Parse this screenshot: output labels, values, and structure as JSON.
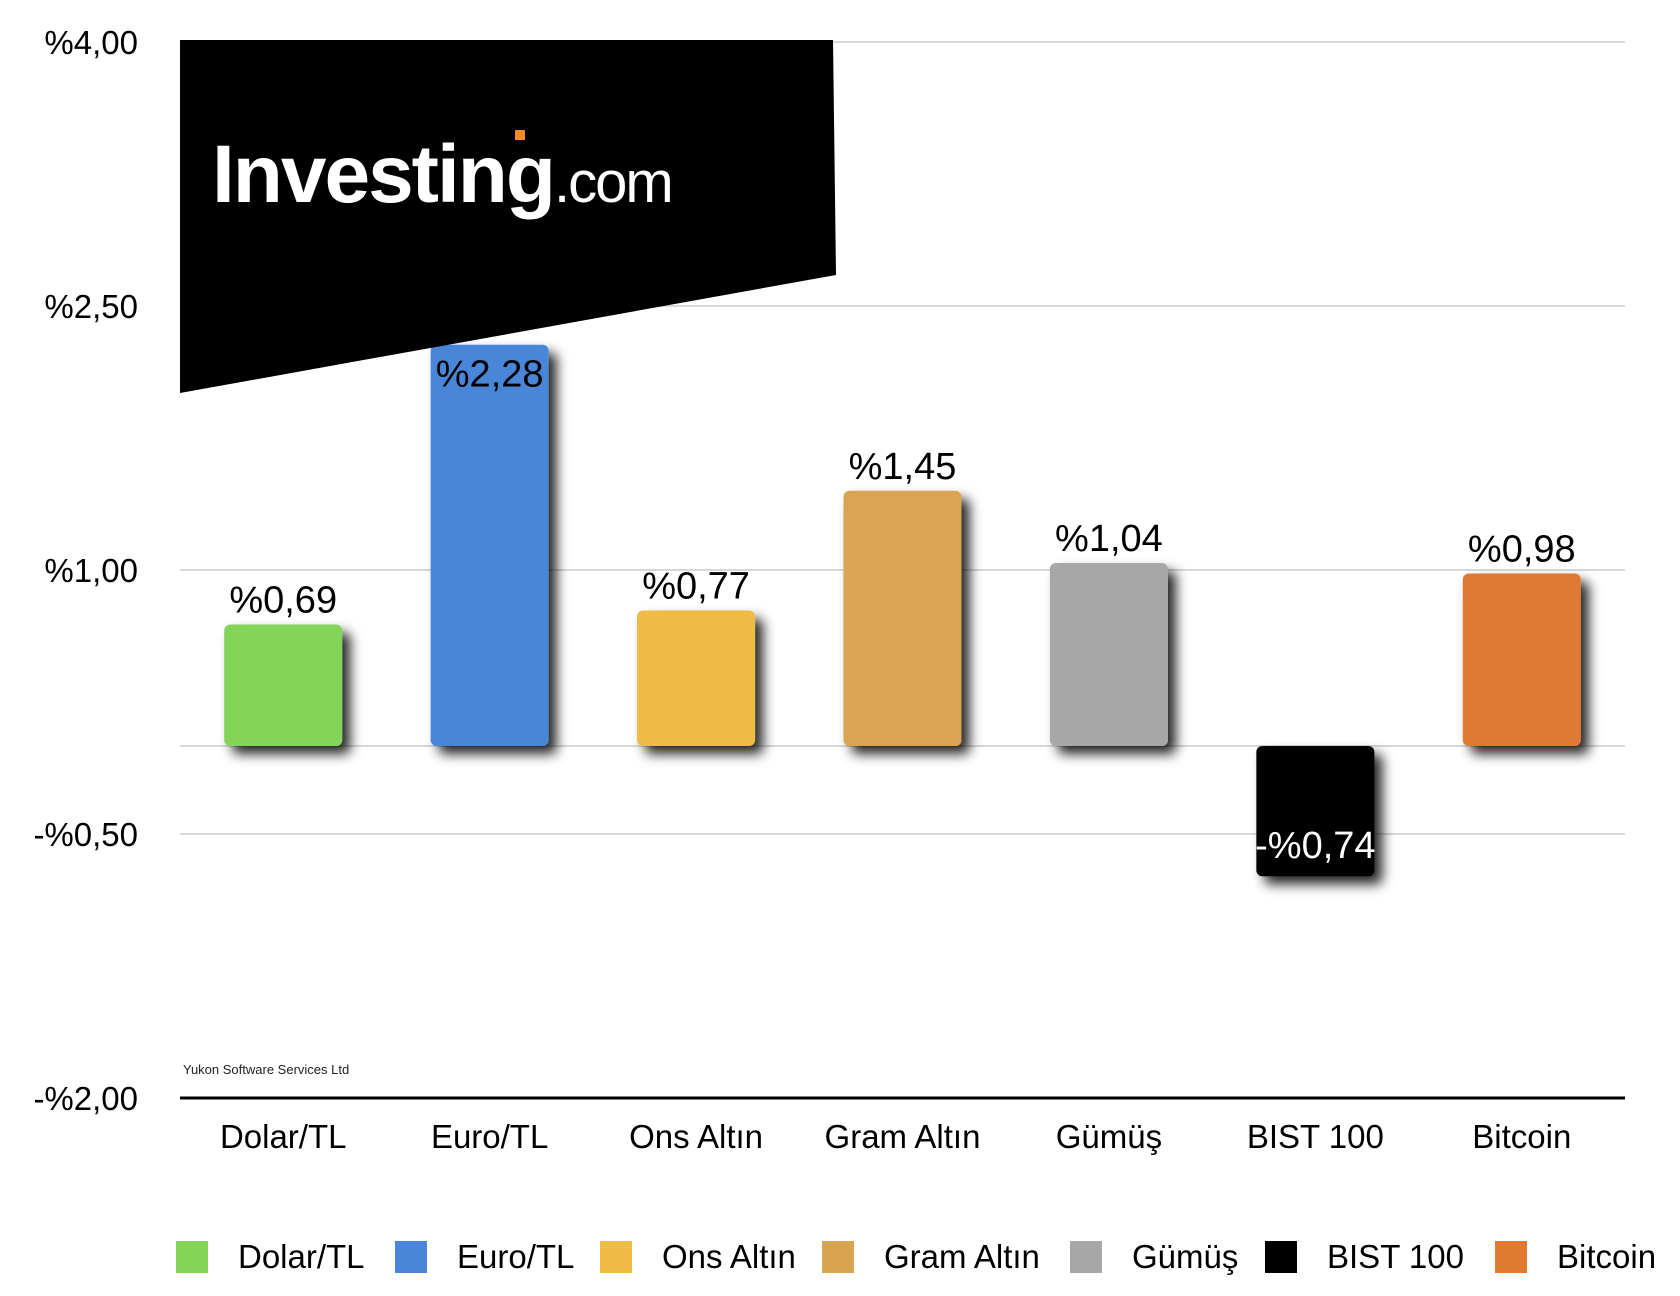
{
  "chart_data": {
    "type": "bar",
    "categories": [
      "Dolar/TL",
      "Euro/TL",
      "Ons Altın",
      "Gram Altın",
      "Gümüş",
      "BIST 100",
      "Bitcoin"
    ],
    "values": [
      0.69,
      2.28,
      0.77,
      1.45,
      1.04,
      -0.74,
      0.98
    ],
    "data_labels": [
      "%0,69",
      "%2,28",
      "%0,77",
      "%1,45",
      "%1,04",
      "-%0,74",
      "%0,98"
    ],
    "colors": [
      "#84d45a",
      "#4a86d8",
      "#eebb44",
      "#d9a452",
      "#a7a7a7",
      "#000000",
      "#e07a30"
    ],
    "ytick_values": [
      4.0,
      2.5,
      1.0,
      -0.5,
      -2.0
    ],
    "ytick_labels": [
      "%4,00",
      "%2,50",
      "%1,00",
      "-%0,50",
      "-%2,00"
    ],
    "ylim": [
      -2.0,
      4.0
    ],
    "grid": true,
    "legend_position": "bottom",
    "title": "",
    "xlabel": "",
    "ylabel": ""
  },
  "logo": {
    "text": "Investing",
    "suffix": ".com"
  },
  "watermark": "Yukon Software Services Ltd"
}
